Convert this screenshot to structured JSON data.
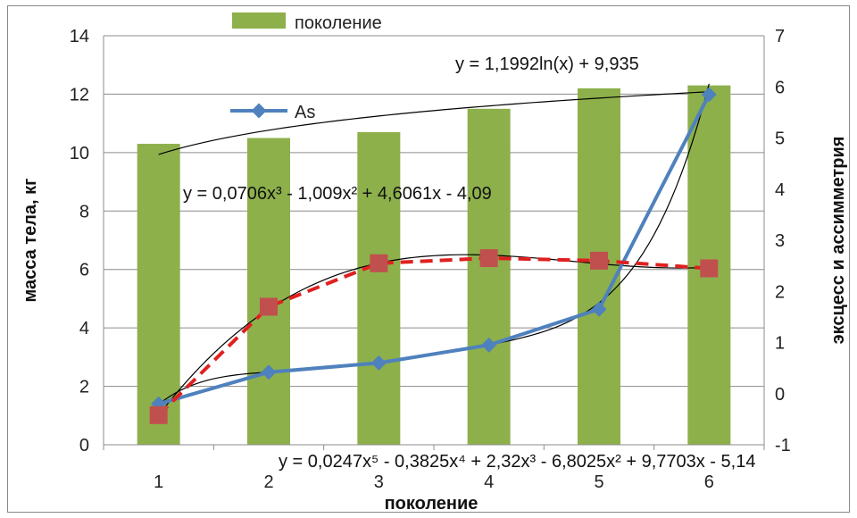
{
  "chart_data": {
    "type": "bar",
    "categories": [
      "1",
      "2",
      "3",
      "4",
      "5",
      "6"
    ],
    "title": "",
    "xlabel": "поколение",
    "ylabel": "масса тела, кг",
    "y2label": "эксцесс и ассимметрия",
    "ylim": [
      0,
      14
    ],
    "y2lim": [
      -1,
      7
    ],
    "yticks": [
      "0",
      "2",
      "4",
      "6",
      "8",
      "10",
      "12",
      "14"
    ],
    "y2ticks": [
      "-1",
      "0",
      "1",
      "2",
      "3",
      "4",
      "5",
      "6",
      "7"
    ],
    "grid": true,
    "series": [
      {
        "name": "поколение",
        "kind": "bar",
        "axis": "left",
        "color": "#8db04b",
        "values": [
          10.3,
          10.5,
          10.7,
          11.5,
          12.2,
          12.3
        ]
      },
      {
        "name": "As",
        "kind": "line-marker",
        "axis": "right",
        "color": "#4f81bd",
        "values": [
          -0.2,
          0.42,
          0.6,
          0.95,
          1.65,
          5.85
        ]
      },
      {
        "kind": "dashed-marker",
        "axis": "right",
        "color": "#e02020",
        "marker_color": "#c0504d",
        "values": [
          -0.42,
          1.7,
          2.55,
          2.65,
          2.6,
          2.45
        ]
      }
    ],
    "trendlines": {
      "bars_log": {
        "a": 1.1992,
        "b": 9.935
      },
      "dashed_poly3": [
        0.0706,
        -1.009,
        4.6061,
        -4.09
      ],
      "as_poly5": [
        0.0247,
        -0.3825,
        2.32,
        -6.8025,
        9.7703,
        -5.14
      ]
    },
    "annotations": {
      "eq_log": "y = 1,1992ln(x) + 9,935",
      "eq_poly3": "y = 0,0706x³ - 1,009x² + 4,6061x - 4,09",
      "eq_poly5": "y = 0,0247x⁵ - 0,3825x⁴ + 2,32x³ - 6,8025x² + 9,7703x - 5,14"
    },
    "legend": {
      "bar_label": "поколение",
      "line_label": "As",
      "placement": "top"
    }
  }
}
